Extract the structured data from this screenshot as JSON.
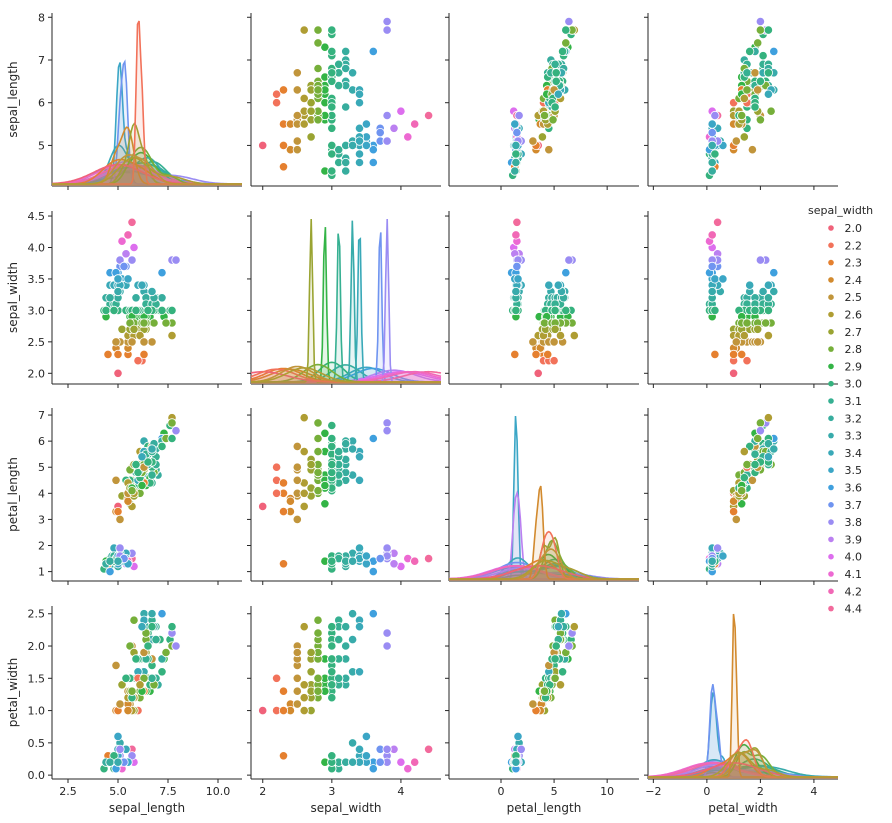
{
  "chart_data": {
    "type": "scatter",
    "title": "",
    "kind": "pairplot",
    "variables": [
      "sepal_length",
      "sepal_width",
      "petal_length",
      "petal_width"
    ],
    "hue": "sepal_width",
    "diagonal": "kde",
    "legend": {
      "title": "sepal_width",
      "placement": "right",
      "entries": [
        {
          "label": "2.0",
          "color": "#f0627a"
        },
        {
          "label": "2.2",
          "color": "#f2725a"
        },
        {
          "label": "2.3",
          "color": "#e5802f"
        },
        {
          "label": "2.4",
          "color": "#d28a2e"
        },
        {
          "label": "2.5",
          "color": "#c1953b"
        },
        {
          "label": "2.6",
          "color": "#af9d33"
        },
        {
          "label": "2.7",
          "color": "#9aa432"
        },
        {
          "label": "2.8",
          "color": "#76af3a"
        },
        {
          "label": "2.9",
          "color": "#33b446"
        },
        {
          "label": "3.0",
          "color": "#35b27e"
        },
        {
          "label": "3.1",
          "color": "#36b092"
        },
        {
          "label": "3.2",
          "color": "#37ad9e"
        },
        {
          "label": "3.3",
          "color": "#38abab"
        },
        {
          "label": "3.4",
          "color": "#39a9b8"
        },
        {
          "label": "3.5",
          "color": "#3ba6c6"
        },
        {
          "label": "3.6",
          "color": "#3fa0de"
        },
        {
          "label": "3.7",
          "color": "#6f94f0"
        },
        {
          "label": "3.8",
          "color": "#9a8cf3"
        },
        {
          "label": "3.9",
          "color": "#bb80f1"
        },
        {
          "label": "4.0",
          "color": "#dd6eee"
        },
        {
          "label": "4.1",
          "color": "#ed69d2"
        },
        {
          "label": "4.2",
          "color": "#f168b6"
        },
        {
          "label": "4.4",
          "color": "#f26a9c"
        }
      ]
    },
    "axes": {
      "sepal_length": {
        "label": "sepal_length",
        "ylim": [
          4.05,
          8.1
        ],
        "yticks": [
          "5",
          "6",
          "7",
          "8"
        ],
        "xlim": [
          1.7,
          11.2
        ],
        "xticks": [
          "2.5",
          "5.0",
          "7.5",
          "10.0"
        ]
      },
      "sepal_width": {
        "label": "sepal_width",
        "ylim": [
          1.83,
          4.58
        ],
        "yticks": [
          "2.0",
          "2.5",
          "3.0",
          "3.5",
          "4.0",
          "4.5"
        ],
        "xlim": [
          1.83,
          4.58
        ],
        "xticks": [
          "2",
          "3",
          "4"
        ]
      },
      "petal_length": {
        "label": "petal_length",
        "ylim": [
          0.64,
          7.27
        ],
        "yticks": [
          "1",
          "2",
          "3",
          "4",
          "5",
          "6",
          "7"
        ],
        "xlim": [
          -4.9,
          13.0
        ],
        "xticks": [
          "0",
          "5",
          "10"
        ]
      },
      "petal_width": {
        "label": "petal_width",
        "ylim": [
          -0.06,
          2.62
        ],
        "yticks": [
          "0.0",
          "0.5",
          "1.0",
          "1.5",
          "2.0",
          "2.5"
        ],
        "xlim": [
          -2.2,
          4.9
        ],
        "xticks": [
          "−2",
          "0",
          "2",
          "4"
        ]
      }
    },
    "points": [
      [
        5.1,
        3.5,
        1.4,
        0.2
      ],
      [
        4.9,
        3.0,
        1.4,
        0.2
      ],
      [
        4.7,
        3.2,
        1.3,
        0.2
      ],
      [
        4.6,
        3.1,
        1.5,
        0.2
      ],
      [
        5.0,
        3.6,
        1.4,
        0.2
      ],
      [
        5.4,
        3.9,
        1.7,
        0.4
      ],
      [
        4.6,
        3.4,
        1.4,
        0.3
      ],
      [
        5.0,
        3.4,
        1.5,
        0.2
      ],
      [
        4.4,
        2.9,
        1.4,
        0.2
      ],
      [
        4.9,
        3.1,
        1.5,
        0.1
      ],
      [
        5.4,
        3.7,
        1.5,
        0.2
      ],
      [
        4.8,
        3.4,
        1.6,
        0.2
      ],
      [
        4.8,
        3.0,
        1.4,
        0.1
      ],
      [
        4.3,
        3.0,
        1.1,
        0.1
      ],
      [
        5.8,
        4.0,
        1.2,
        0.2
      ],
      [
        5.7,
        4.4,
        1.5,
        0.4
      ],
      [
        5.4,
        3.9,
        1.3,
        0.4
      ],
      [
        5.1,
        3.5,
        1.4,
        0.3
      ],
      [
        5.7,
        3.8,
        1.7,
        0.3
      ],
      [
        5.1,
        3.8,
        1.5,
        0.3
      ],
      [
        5.4,
        3.4,
        1.7,
        0.2
      ],
      [
        5.1,
        3.7,
        1.5,
        0.4
      ],
      [
        4.6,
        3.6,
        1.0,
        0.2
      ],
      [
        5.1,
        3.3,
        1.7,
        0.5
      ],
      [
        4.8,
        3.4,
        1.9,
        0.2
      ],
      [
        5.0,
        3.0,
        1.6,
        0.2
      ],
      [
        5.0,
        3.4,
        1.6,
        0.4
      ],
      [
        5.2,
        3.5,
        1.5,
        0.2
      ],
      [
        5.2,
        3.4,
        1.4,
        0.2
      ],
      [
        4.7,
        3.2,
        1.6,
        0.2
      ],
      [
        4.8,
        3.1,
        1.6,
        0.2
      ],
      [
        5.4,
        3.4,
        1.5,
        0.4
      ],
      [
        5.2,
        4.1,
        1.5,
        0.1
      ],
      [
        5.5,
        4.2,
        1.4,
        0.2
      ],
      [
        4.9,
        3.1,
        1.5,
        0.2
      ],
      [
        5.0,
        3.2,
        1.2,
        0.2
      ],
      [
        5.5,
        3.5,
        1.3,
        0.2
      ],
      [
        4.9,
        3.6,
        1.4,
        0.1
      ],
      [
        4.4,
        3.0,
        1.3,
        0.2
      ],
      [
        5.1,
        3.4,
        1.5,
        0.2
      ],
      [
        5.0,
        3.5,
        1.3,
        0.3
      ],
      [
        4.5,
        2.3,
        1.3,
        0.3
      ],
      [
        4.4,
        3.2,
        1.3,
        0.2
      ],
      [
        5.0,
        3.5,
        1.6,
        0.6
      ],
      [
        5.1,
        3.8,
        1.9,
        0.4
      ],
      [
        4.8,
        3.0,
        1.4,
        0.3
      ],
      [
        5.1,
        3.8,
        1.6,
        0.2
      ],
      [
        4.6,
        3.2,
        1.4,
        0.2
      ],
      [
        5.3,
        3.7,
        1.5,
        0.2
      ],
      [
        5.0,
        3.3,
        1.4,
        0.2
      ],
      [
        7.0,
        3.2,
        4.7,
        1.4
      ],
      [
        6.4,
        3.2,
        4.5,
        1.5
      ],
      [
        6.9,
        3.1,
        4.9,
        1.5
      ],
      [
        5.5,
        2.3,
        4.0,
        1.3
      ],
      [
        6.5,
        2.8,
        4.6,
        1.5
      ],
      [
        5.7,
        2.8,
        4.5,
        1.3
      ],
      [
        6.3,
        3.3,
        4.7,
        1.6
      ],
      [
        4.9,
        2.4,
        3.3,
        1.0
      ],
      [
        6.6,
        2.9,
        4.6,
        1.3
      ],
      [
        5.2,
        2.7,
        3.9,
        1.4
      ],
      [
        5.0,
        2.0,
        3.5,
        1.0
      ],
      [
        5.9,
        3.0,
        4.2,
        1.5
      ],
      [
        6.0,
        2.2,
        4.0,
        1.0
      ],
      [
        6.1,
        2.9,
        4.7,
        1.4
      ],
      [
        5.6,
        2.9,
        3.6,
        1.3
      ],
      [
        6.7,
        3.1,
        4.4,
        1.4
      ],
      [
        5.6,
        3.0,
        4.5,
        1.5
      ],
      [
        5.8,
        2.7,
        4.1,
        1.0
      ],
      [
        6.2,
        2.2,
        4.5,
        1.5
      ],
      [
        5.6,
        2.5,
        3.9,
        1.1
      ],
      [
        5.9,
        3.2,
        4.8,
        1.8
      ],
      [
        6.1,
        2.8,
        4.0,
        1.3
      ],
      [
        6.3,
        2.5,
        4.9,
        1.5
      ],
      [
        6.1,
        2.8,
        4.7,
        1.2
      ],
      [
        6.4,
        2.9,
        4.3,
        1.3
      ],
      [
        6.6,
        3.0,
        4.4,
        1.4
      ],
      [
        6.8,
        2.8,
        4.8,
        1.4
      ],
      [
        6.7,
        3.0,
        5.0,
        1.7
      ],
      [
        6.0,
        2.9,
        4.5,
        1.5
      ],
      [
        5.7,
        2.6,
        3.5,
        1.0
      ],
      [
        5.5,
        2.4,
        3.8,
        1.1
      ],
      [
        5.5,
        2.4,
        3.7,
        1.0
      ],
      [
        5.8,
        2.7,
        3.9,
        1.2
      ],
      [
        6.0,
        2.7,
        5.1,
        1.6
      ],
      [
        5.4,
        3.0,
        4.5,
        1.5
      ],
      [
        6.0,
        3.4,
        4.5,
        1.6
      ],
      [
        6.7,
        3.1,
        4.7,
        1.5
      ],
      [
        6.3,
        2.3,
        4.4,
        1.3
      ],
      [
        5.6,
        3.0,
        4.1,
        1.3
      ],
      [
        5.5,
        2.5,
        4.0,
        1.3
      ],
      [
        5.5,
        2.6,
        4.4,
        1.2
      ],
      [
        6.1,
        3.0,
        4.6,
        1.4
      ],
      [
        5.8,
        2.6,
        4.0,
        1.2
      ],
      [
        5.0,
        2.3,
        3.3,
        1.0
      ],
      [
        5.6,
        2.7,
        4.2,
        1.3
      ],
      [
        5.7,
        3.0,
        4.2,
        1.2
      ],
      [
        5.7,
        2.9,
        4.2,
        1.3
      ],
      [
        6.2,
        2.9,
        4.3,
        1.3
      ],
      [
        5.1,
        2.5,
        3.0,
        1.1
      ],
      [
        5.7,
        2.8,
        4.1,
        1.3
      ],
      [
        6.3,
        3.3,
        6.0,
        2.5
      ],
      [
        5.8,
        2.7,
        5.1,
        1.9
      ],
      [
        7.1,
        3.0,
        5.9,
        2.1
      ],
      [
        6.3,
        2.9,
        5.6,
        1.8
      ],
      [
        6.5,
        3.0,
        5.8,
        2.2
      ],
      [
        7.6,
        3.0,
        6.6,
        2.1
      ],
      [
        4.9,
        2.5,
        4.5,
        1.7
      ],
      [
        7.3,
        2.9,
        6.3,
        1.8
      ],
      [
        6.7,
        2.5,
        5.8,
        1.8
      ],
      [
        7.2,
        3.6,
        6.1,
        2.5
      ],
      [
        6.5,
        3.2,
        5.1,
        2.0
      ],
      [
        6.4,
        2.7,
        5.3,
        1.9
      ],
      [
        6.8,
        3.0,
        5.5,
        2.1
      ],
      [
        5.7,
        2.5,
        5.0,
        2.0
      ],
      [
        5.8,
        2.8,
        5.1,
        2.4
      ],
      [
        6.4,
        3.2,
        5.3,
        2.3
      ],
      [
        6.5,
        3.0,
        5.5,
        1.8
      ],
      [
        7.7,
        3.8,
        6.7,
        2.2
      ],
      [
        7.7,
        2.6,
        6.9,
        2.3
      ],
      [
        6.0,
        2.2,
        5.0,
        1.5
      ],
      [
        6.9,
        3.2,
        5.7,
        2.3
      ],
      [
        5.6,
        2.8,
        4.9,
        2.0
      ],
      [
        7.7,
        2.8,
        6.7,
        2.0
      ],
      [
        6.3,
        2.7,
        4.9,
        1.8
      ],
      [
        6.7,
        3.3,
        5.7,
        2.1
      ],
      [
        7.2,
        3.2,
        6.0,
        1.8
      ],
      [
        6.2,
        2.8,
        4.8,
        1.8
      ],
      [
        6.1,
        3.0,
        4.9,
        1.8
      ],
      [
        6.4,
        2.8,
        5.6,
        2.1
      ],
      [
        7.2,
        3.0,
        5.8,
        1.6
      ],
      [
        7.4,
        2.8,
        6.1,
        1.9
      ],
      [
        7.9,
        3.8,
        6.4,
        2.0
      ],
      [
        6.4,
        2.8,
        5.6,
        2.2
      ],
      [
        6.3,
        2.8,
        5.1,
        1.5
      ],
      [
        6.1,
        2.6,
        5.6,
        1.4
      ],
      [
        7.7,
        3.0,
        6.1,
        2.3
      ],
      [
        6.3,
        3.4,
        5.6,
        2.4
      ],
      [
        6.4,
        3.1,
        5.5,
        1.8
      ],
      [
        6.0,
        3.0,
        4.8,
        1.8
      ],
      [
        6.9,
        3.1,
        5.4,
        2.1
      ],
      [
        6.7,
        3.1,
        5.6,
        2.4
      ],
      [
        6.9,
        3.1,
        5.1,
        2.3
      ],
      [
        5.8,
        2.7,
        5.1,
        1.9
      ],
      [
        6.8,
        3.2,
        5.9,
        2.3
      ],
      [
        6.7,
        3.3,
        5.7,
        2.5
      ],
      [
        6.7,
        3.0,
        5.2,
        2.3
      ],
      [
        6.3,
        2.5,
        5.0,
        1.9
      ],
      [
        6.5,
        3.0,
        5.2,
        2.0
      ],
      [
        6.2,
        3.4,
        5.4,
        2.3
      ],
      [
        5.9,
        3.0,
        5.1,
        1.8
      ]
    ]
  }
}
